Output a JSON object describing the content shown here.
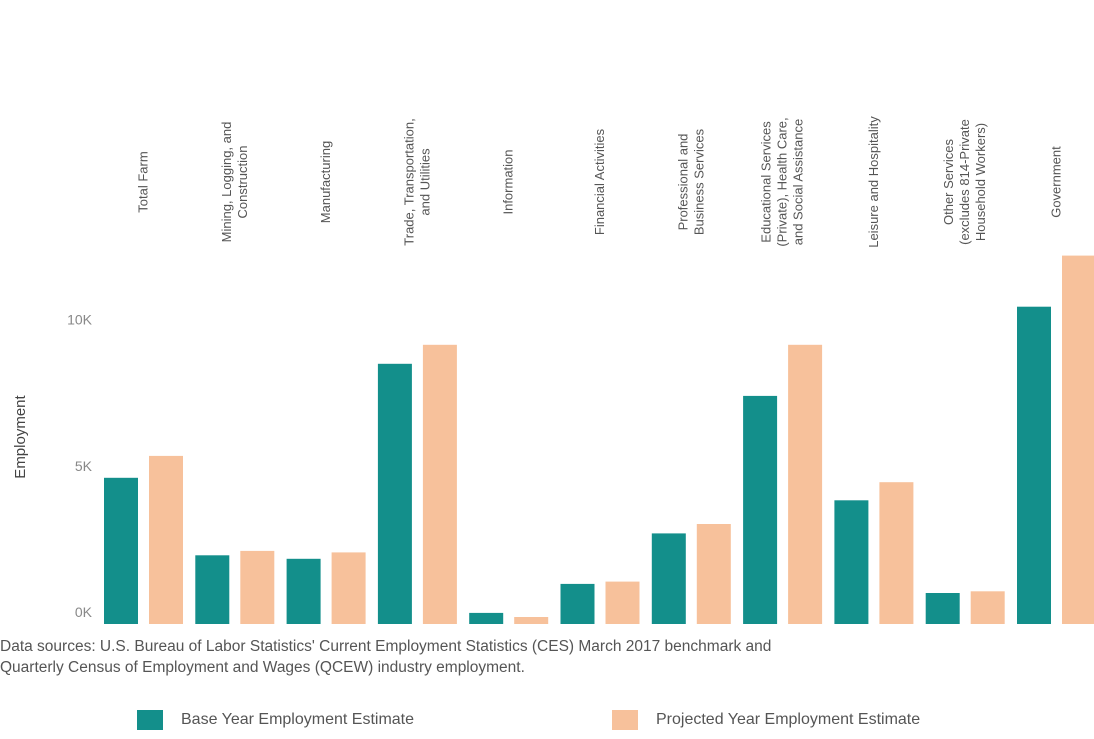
{
  "chart_data": {
    "type": "bar",
    "categories": [
      [
        "Total Farm"
      ],
      [
        "Mining, Logging, and",
        "Construction"
      ],
      [
        "Manufacturing"
      ],
      [
        "Trade, Transportation,",
        "and Utilities"
      ],
      [
        "Information"
      ],
      [
        "Financial Activities"
      ],
      [
        "Professional and",
        "Business Services"
      ],
      [
        "Educational Services",
        "(Private), Health Care,",
        "and Social Assistance"
      ],
      [
        "Leisure and Hospitality"
      ],
      [
        "Other Services",
        "(excludes 814-Private",
        "Household Workers)"
      ],
      [
        "Government"
      ]
    ],
    "series": [
      {
        "name": "Base Year Employment Estimate",
        "color": "#138f8b",
        "values": [
          5000,
          2350,
          2230,
          8900,
          380,
          1370,
          3100,
          7800,
          4230,
          1060,
          10850
        ]
      },
      {
        "name": "Projected Year Employment Estimate",
        "color": "#f7c19b",
        "values": [
          5750,
          2500,
          2450,
          9550,
          240,
          1450,
          3420,
          9550,
          4850,
          1120,
          12600
        ]
      }
    ],
    "ylabel": "Employment",
    "yticks": [
      0,
      5000,
      10000
    ],
    "ytick_labels": [
      "0K",
      "5K",
      "10K"
    ],
    "ylim": [
      0,
      12600
    ],
    "legend_position": "bottom"
  },
  "source": {
    "line1": "Data sources: U.S. Bureau of Labor Statistics' Current Employment Statistics (CES) March 2017 benchmark and",
    "line2": "Quarterly Census of Employment and Wages (QCEW) industry employment."
  },
  "legend": {
    "base_label": "Base Year Employment Estimate",
    "projected_label": "Projected Year Employment Estimate",
    "base_color": "#138f8b",
    "projected_color": "#f7c19b"
  }
}
